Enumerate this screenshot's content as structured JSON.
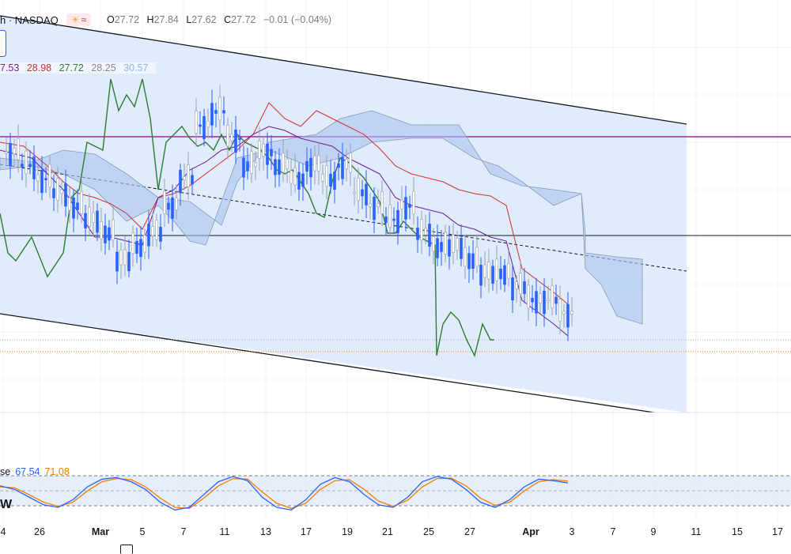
{
  "header": {
    "symbol_label": "h · NASDAQ",
    "ohlc": [
      {
        "key": "O",
        "value": "27.72"
      },
      {
        "key": "H",
        "value": "27.84"
      },
      {
        "key": "L",
        "value": "27.62"
      },
      {
        "key": "C",
        "value": "27.72"
      }
    ],
    "change": "−0.01 (−0.04%)",
    "badge_icons": [
      "sun-icon",
      "wave-icon"
    ]
  },
  "indicator_values": [
    {
      "text": "7.53",
      "color": "#7b1fa2"
    },
    {
      "text": "28.98",
      "color": "#d32f2f"
    },
    {
      "text": "27.72",
      "color": "#2e7d32"
    },
    {
      "text": "28.25",
      "color": "#888888"
    },
    {
      "text": "30.57",
      "color": "#90b4e8"
    }
  ],
  "stoch": {
    "label": "se",
    "k": "67.54",
    "d": "71.08",
    "k_color": "#2962ff",
    "d_color": "#f57c00"
  },
  "wlabel": "W",
  "xaxis": {
    "labels": [
      {
        "text": "4",
        "bold": false
      },
      {
        "text": "26",
        "bold": false
      },
      {
        "text": "Mar",
        "bold": true
      },
      {
        "text": "5",
        "bold": false
      },
      {
        "text": "7",
        "bold": false
      },
      {
        "text": "11",
        "bold": false
      },
      {
        "text": "13",
        "bold": false
      },
      {
        "text": "17",
        "bold": false
      },
      {
        "text": "19",
        "bold": false
      },
      {
        "text": "21",
        "bold": false
      },
      {
        "text": "25",
        "bold": false
      },
      {
        "text": "27",
        "bold": false
      },
      {
        "text": "Apr",
        "bold": true
      },
      {
        "text": "3",
        "bold": false
      },
      {
        "text": "7",
        "bold": false
      },
      {
        "text": "9",
        "bold": false
      },
      {
        "text": "11",
        "bold": false
      },
      {
        "text": "15",
        "bold": false
      },
      {
        "text": "17",
        "bold": false
      }
    ]
  },
  "colors": {
    "candle": "#2962ff",
    "channel_fill": "#dbe7fb",
    "tenkan": "#d32f2f",
    "kijun": "#6a1b9a",
    "chikou": "#2e7d32",
    "cloud": "#a9c4ee",
    "hline_purple": "#9c27b0"
  },
  "chart_data": {
    "type": "candlestick",
    "price_points": [
      28.4,
      28.3,
      28.2,
      28.1,
      28.0,
      27.9,
      27.8,
      27.6,
      27.7,
      27.8,
      28.0,
      28.2,
      28.6,
      28.7,
      28.5,
      28.3,
      28.4,
      28.3,
      28.2,
      28.3,
      28.2,
      28.3,
      28.1,
      28.0,
      27.9,
      28.0,
      27.8,
      27.7,
      27.7,
      27.6,
      27.5,
      27.5,
      27.4,
      27.3,
      27.3,
      27.2
    ],
    "stoch_k": [
      62,
      55,
      40,
      25,
      20,
      35,
      60,
      75,
      78,
      70,
      55,
      30,
      15,
      20,
      45,
      70,
      80,
      72,
      40,
      20,
      15,
      35,
      65,
      78,
      70,
      45,
      25,
      20,
      40,
      70,
      80,
      75,
      55,
      30,
      20,
      35,
      60,
      75,
      72,
      67.54
    ],
    "stoch_d": [
      60,
      58,
      45,
      30,
      22,
      30,
      52,
      70,
      76,
      74,
      60,
      38,
      20,
      18,
      38,
      62,
      76,
      75,
      50,
      28,
      18,
      28,
      55,
      72,
      74,
      55,
      32,
      22,
      34,
      60,
      76,
      77,
      62,
      38,
      24,
      30,
      52,
      70,
      74,
      71.08
    ]
  }
}
